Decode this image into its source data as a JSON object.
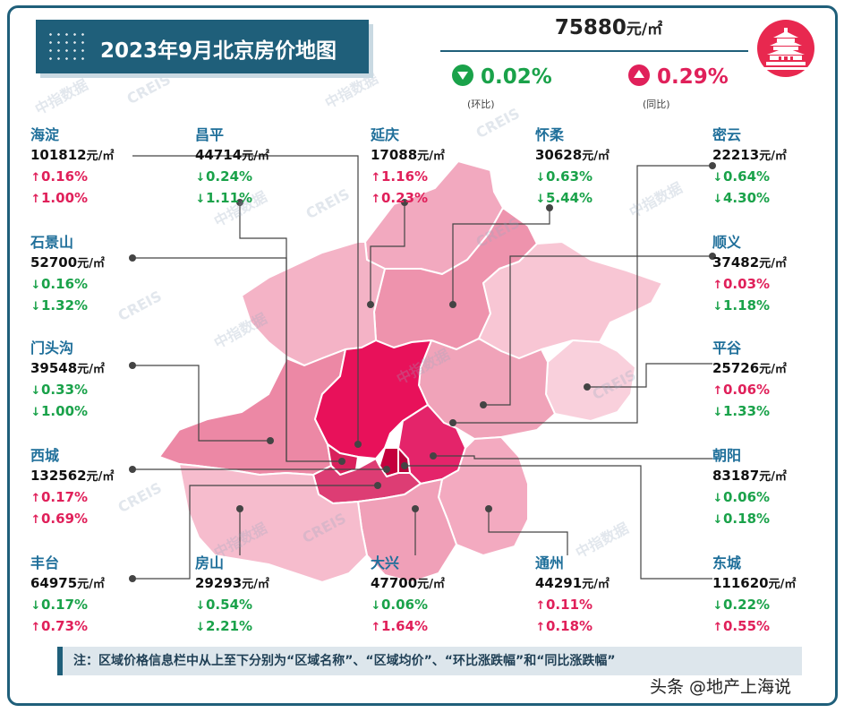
{
  "title": "2023年9月北京房价地图",
  "avg_price": {
    "value": "75880",
    "unit": "元/㎡"
  },
  "mom": {
    "value": "0.02%",
    "direction": "down",
    "label": "(环比)"
  },
  "yoy": {
    "value": "0.29%",
    "direction": "up",
    "label": "(同比)"
  },
  "watermark": [
    "中指数据",
    "CREIS"
  ],
  "note": "注：区域价格信息栏中从上至下分别为“区域名称”、“区域均价”、“环比涨跌幅”和“同比涨跌幅”",
  "credit": "头条 @地产上海说",
  "colors": {
    "up": "#e0205a",
    "down": "#1aa24a",
    "name": "#1f6f9a",
    "brand": "#1f5f7a"
  },
  "chart_data": {
    "type": "table",
    "columns": [
      "区域名称",
      "区域均价",
      "环比涨跌幅",
      "同比涨跌幅"
    ],
    "districts": [
      {
        "name": "海淀",
        "price": "101812",
        "mom": "0.16%",
        "mom_dir": "up",
        "yoy": "1.00%",
        "yoy_dir": "up"
      },
      {
        "name": "昌平",
        "price": "44714",
        "mom": "0.24%",
        "mom_dir": "down",
        "yoy": "1.11%",
        "yoy_dir": "down"
      },
      {
        "name": "延庆",
        "price": "17088",
        "mom": "1.16%",
        "mom_dir": "up",
        "yoy": "0.23%",
        "yoy_dir": "up"
      },
      {
        "name": "怀柔",
        "price": "30628",
        "mom": "0.63%",
        "mom_dir": "down",
        "yoy": "5.44%",
        "yoy_dir": "down"
      },
      {
        "name": "密云",
        "price": "22213",
        "mom": "0.64%",
        "mom_dir": "down",
        "yoy": "4.30%",
        "yoy_dir": "down"
      },
      {
        "name": "石景山",
        "price": "52700",
        "mom": "0.16%",
        "mom_dir": "down",
        "yoy": "1.32%",
        "yoy_dir": "down"
      },
      {
        "name": "顺义",
        "price": "37482",
        "mom": "0.03%",
        "mom_dir": "up",
        "yoy": "1.18%",
        "yoy_dir": "down"
      },
      {
        "name": "门头沟",
        "price": "39548",
        "mom": "0.33%",
        "mom_dir": "down",
        "yoy": "1.00%",
        "yoy_dir": "down"
      },
      {
        "name": "平谷",
        "price": "25726",
        "mom": "0.06%",
        "mom_dir": "up",
        "yoy": "1.33%",
        "yoy_dir": "down"
      },
      {
        "name": "西城",
        "price": "132562",
        "mom": "0.17%",
        "mom_dir": "up",
        "yoy": "0.69%",
        "yoy_dir": "up"
      },
      {
        "name": "朝阳",
        "price": "83187",
        "mom": "0.06%",
        "mom_dir": "down",
        "yoy": "0.18%",
        "yoy_dir": "down"
      },
      {
        "name": "丰台",
        "price": "64975",
        "mom": "0.17%",
        "mom_dir": "down",
        "yoy": "0.73%",
        "yoy_dir": "up"
      },
      {
        "name": "房山",
        "price": "29293",
        "mom": "0.54%",
        "mom_dir": "down",
        "yoy": "2.21%",
        "yoy_dir": "down"
      },
      {
        "name": "大兴",
        "price": "47700",
        "mom": "0.06%",
        "mom_dir": "down",
        "yoy": "1.64%",
        "yoy_dir": "up"
      },
      {
        "name": "通州",
        "price": "44291",
        "mom": "0.11%",
        "mom_dir": "up",
        "yoy": "0.18%",
        "yoy_dir": "up"
      },
      {
        "name": "东城",
        "price": "111620",
        "mom": "0.22%",
        "mom_dir": "down",
        "yoy": "0.55%",
        "yoy_dir": "up"
      }
    ]
  }
}
